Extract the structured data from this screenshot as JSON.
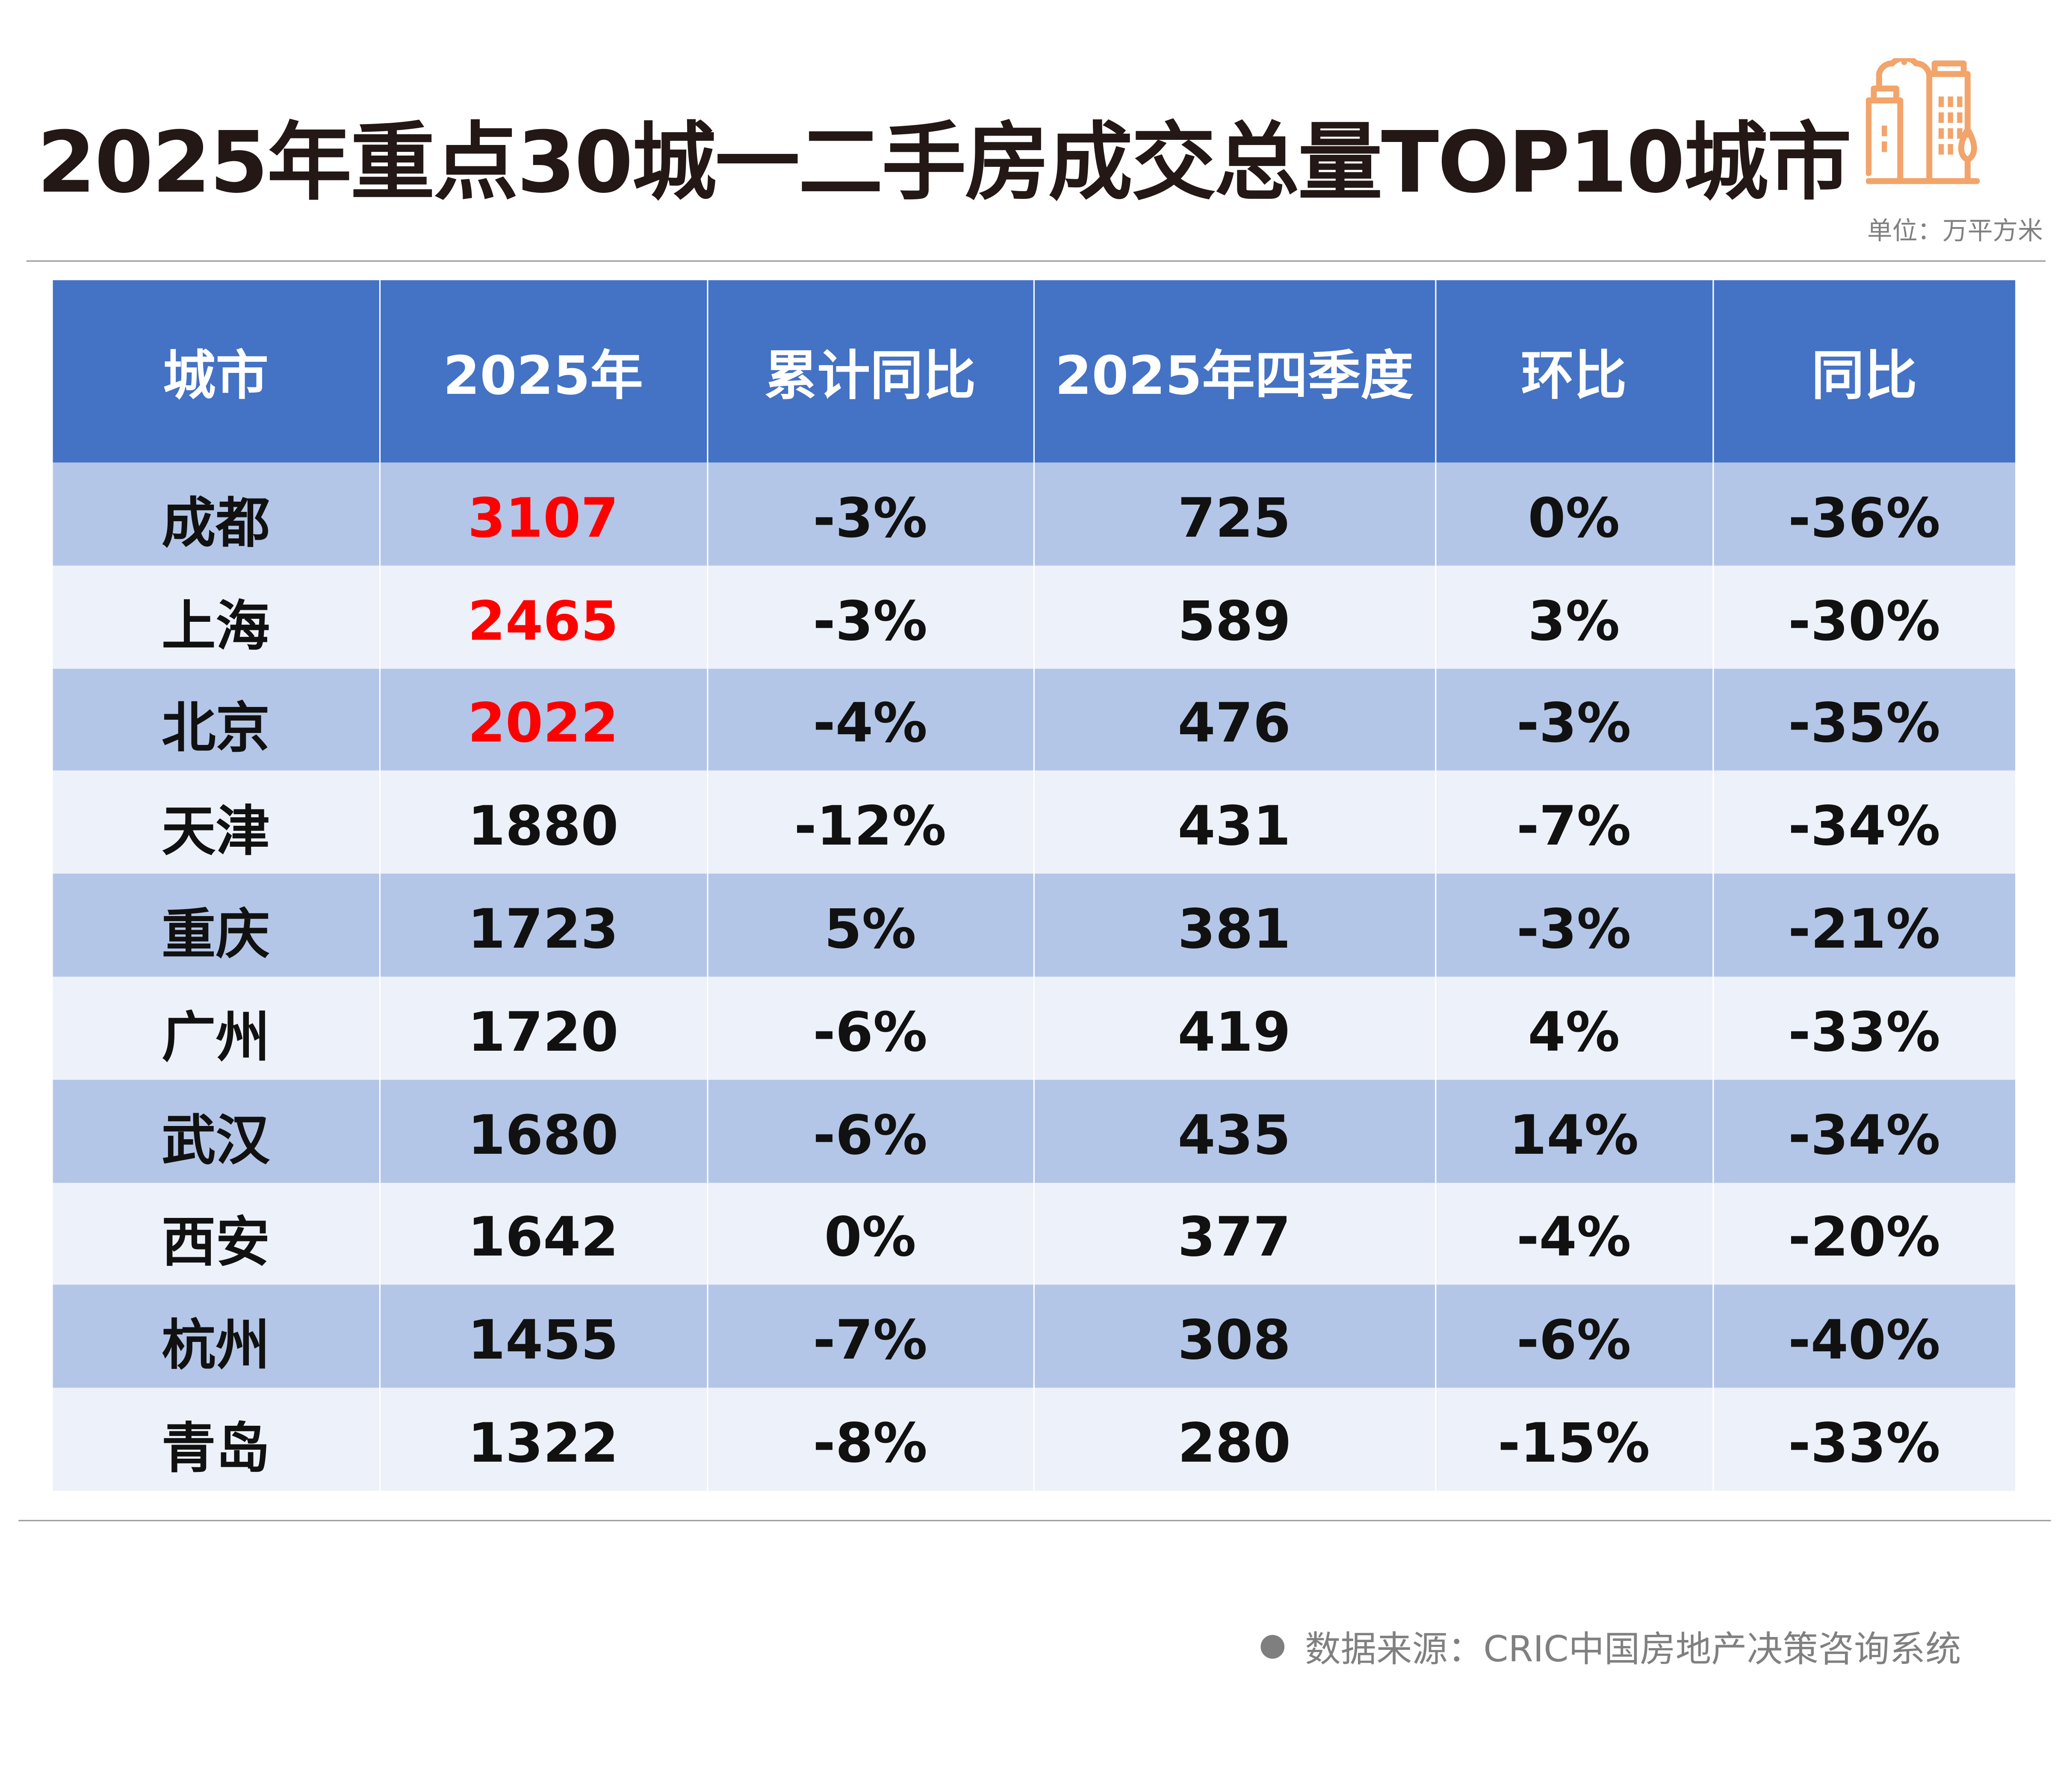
{
  "title": "2025年重点30城一二手房成交总量TOP10城市",
  "unit": "单位：万平方米",
  "icon": "city-buildings-icon",
  "colors": {
    "header": "#4472C4",
    "row_dark": "#B4C6E7",
    "row_light": "#EDF1F9",
    "highlight": "#FF0000",
    "icon": "#F2A46A"
  },
  "table": {
    "headers": [
      "城市",
      "2025年",
      "累计同比",
      "2025年四季度",
      "环比",
      "同比"
    ],
    "rows": [
      {
        "city": "成都",
        "y2025": "3107",
        "cum_yoy": "-3%",
        "q4": "725",
        "qoq": "0%",
        "yoy": "-36%",
        "highlight": true
      },
      {
        "city": "上海",
        "y2025": "2465",
        "cum_yoy": "-3%",
        "q4": "589",
        "qoq": "3%",
        "yoy": "-30%",
        "highlight": true
      },
      {
        "city": "北京",
        "y2025": "2022",
        "cum_yoy": "-4%",
        "q4": "476",
        "qoq": "-3%",
        "yoy": "-35%",
        "highlight": true
      },
      {
        "city": "天津",
        "y2025": "1880",
        "cum_yoy": "-12%",
        "q4": "431",
        "qoq": "-7%",
        "yoy": "-34%"
      },
      {
        "city": "重庆",
        "y2025": "1723",
        "cum_yoy": "5%",
        "q4": "381",
        "qoq": "-3%",
        "yoy": "-21%"
      },
      {
        "city": "广州",
        "y2025": "1720",
        "cum_yoy": "-6%",
        "q4": "419",
        "qoq": "4%",
        "yoy": "-33%"
      },
      {
        "city": "武汉",
        "y2025": "1680",
        "cum_yoy": "-6%",
        "q4": "435",
        "qoq": "14%",
        "yoy": "-34%"
      },
      {
        "city": "西安",
        "y2025": "1642",
        "cum_yoy": "0%",
        "q4": "377",
        "qoq": "-4%",
        "yoy": "-20%"
      },
      {
        "city": "杭州",
        "y2025": "1455",
        "cum_yoy": "-7%",
        "q4": "308",
        "qoq": "-6%",
        "yoy": "-40%"
      },
      {
        "city": "青岛",
        "y2025": "1322",
        "cum_yoy": "-8%",
        "q4": "280",
        "qoq": "-15%",
        "yoy": "-33%"
      }
    ]
  },
  "source": "数据来源：CRIC中国房地产决策咨询系统"
}
